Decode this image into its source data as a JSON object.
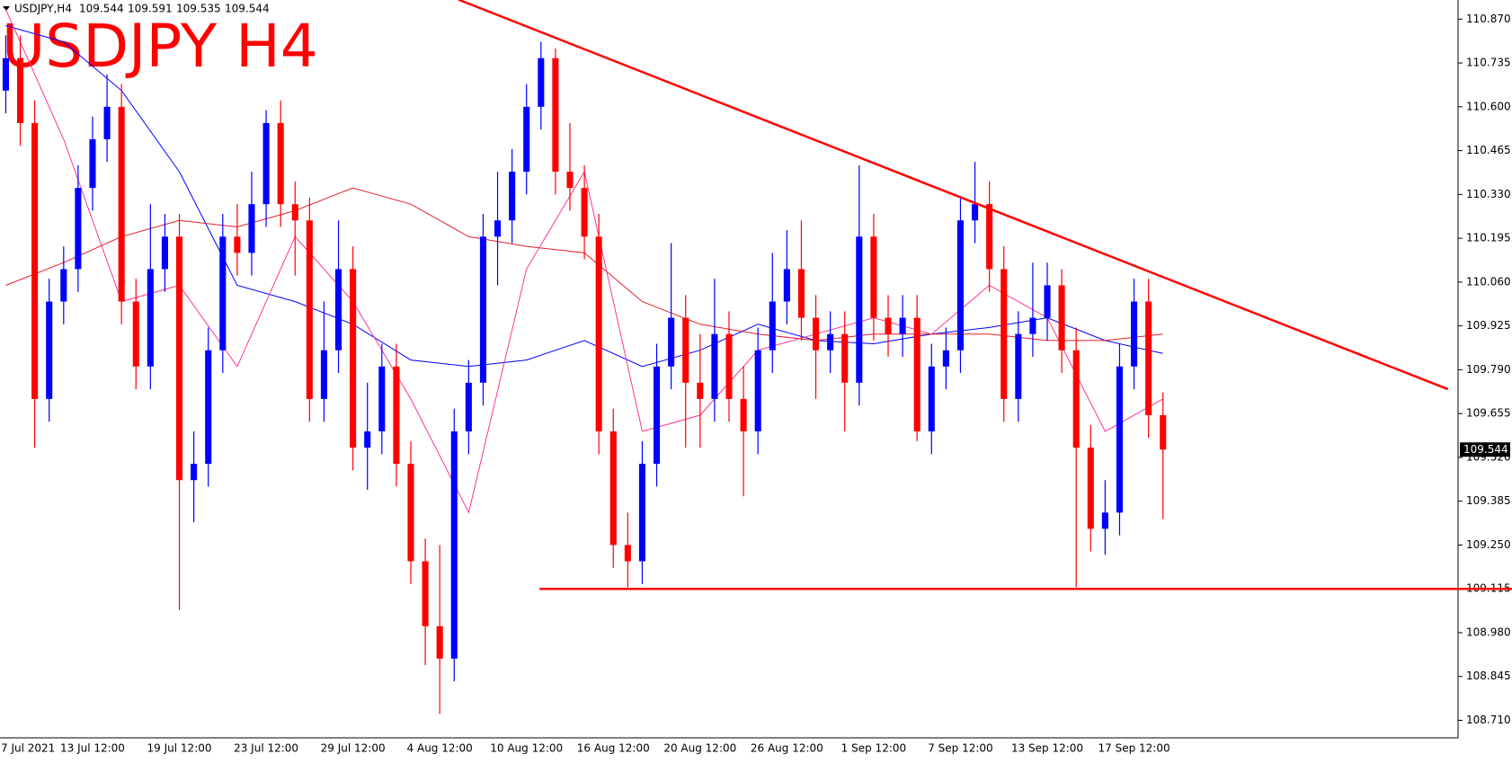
{
  "header": {
    "symbol": "USDJPY,H4",
    "ohlc": [
      109.544,
      109.591,
      109.535,
      109.544
    ]
  },
  "chart_data": {
    "type": "candlestick",
    "title": "USDJPY H4",
    "categories": [
      "7 Jul 2021",
      null,
      null,
      null,
      null,
      null,
      "13 Jul 12:00",
      null,
      null,
      null,
      null,
      null,
      "19 Jul 12:00",
      null,
      null,
      null,
      null,
      null,
      "23 Jul 12:00",
      null,
      null,
      null,
      null,
      null,
      "29 Jul 12:00",
      null,
      null,
      null,
      null,
      null,
      "4 Aug 12:00",
      null,
      null,
      null,
      null,
      null,
      "10 Aug 12:00",
      null,
      null,
      null,
      null,
      null,
      "16 Aug 12:00",
      null,
      null,
      null,
      null,
      null,
      "20 Aug 12:00",
      null,
      null,
      null,
      null,
      null,
      "26 Aug 12:00",
      null,
      null,
      null,
      null,
      null,
      "1 Sep 12:00",
      null,
      null,
      null,
      null,
      null,
      "7 Sep 12:00",
      null,
      null,
      null,
      null,
      null,
      "13 Sep 12:00",
      null,
      null,
      null,
      null,
      null,
      "17 Sep 12:00",
      null,
      null
    ],
    "open": [
      110.65,
      110.75,
      110.55,
      109.7,
      110.0,
      110.1,
      110.35,
      110.5,
      110.6,
      110.0,
      109.8,
      110.1,
      110.2,
      109.45,
      109.5,
      109.85,
      110.2,
      110.15,
      110.3,
      110.55,
      110.3,
      110.25,
      109.7,
      109.85,
      110.1,
      109.55,
      109.6,
      109.8,
      109.5,
      109.2,
      109.0,
      108.9,
      109.6,
      109.75,
      110.2,
      110.25,
      110.4,
      110.6,
      110.75,
      110.4,
      110.35,
      110.2,
      109.6,
      109.25,
      109.2,
      109.5,
      109.8,
      109.95,
      109.75,
      109.7,
      109.9,
      109.7,
      109.6,
      109.85,
      110.0,
      110.1,
      109.95,
      109.85,
      109.9,
      109.75,
      110.2,
      109.95,
      109.9,
      109.95,
      109.6,
      109.8,
      109.85,
      110.25,
      110.3,
      110.1,
      109.7,
      109.9,
      109.95,
      110.05,
      109.85,
      109.55,
      109.3,
      109.35,
      109.8,
      110.0,
      109.65
    ],
    "high": [
      110.82,
      110.82,
      110.62,
      110.07,
      110.17,
      110.42,
      110.57,
      110.7,
      110.67,
      110.07,
      110.3,
      110.27,
      110.27,
      109.6,
      109.92,
      110.27,
      110.3,
      110.4,
      110.59,
      110.62,
      110.37,
      110.32,
      110.0,
      110.25,
      110.17,
      109.75,
      109.87,
      109.87,
      109.57,
      109.27,
      109.25,
      109.67,
      109.82,
      110.27,
      110.4,
      110.47,
      110.67,
      110.8,
      110.78,
      110.55,
      110.42,
      110.27,
      109.67,
      109.35,
      109.57,
      109.87,
      110.18,
      110.02,
      109.9,
      110.07,
      109.97,
      109.8,
      109.92,
      110.15,
      110.22,
      110.25,
      110.02,
      109.97,
      109.97,
      110.42,
      110.27,
      110.02,
      110.02,
      110.02,
      109.87,
      109.92,
      110.32,
      110.43,
      110.37,
      110.17,
      109.97,
      110.12,
      110.12,
      110.1,
      109.92,
      109.62,
      109.45,
      109.87,
      110.07,
      110.07,
      109.72
    ],
    "low": [
      110.58,
      110.48,
      109.55,
      109.63,
      109.93,
      110.03,
      110.28,
      110.43,
      109.93,
      109.73,
      109.73,
      110.03,
      109.05,
      109.32,
      109.43,
      109.78,
      110.08,
      110.08,
      110.23,
      110.23,
      110.08,
      109.63,
      109.63,
      109.78,
      109.48,
      109.42,
      109.53,
      109.43,
      109.13,
      108.88,
      108.73,
      108.83,
      109.53,
      109.68,
      110.05,
      110.18,
      110.33,
      110.53,
      110.33,
      110.28,
      110.13,
      109.53,
      109.18,
      109.12,
      109.13,
      109.43,
      109.73,
      109.55,
      109.55,
      109.63,
      109.63,
      109.4,
      109.53,
      109.78,
      109.93,
      109.88,
      109.7,
      109.78,
      109.6,
      109.68,
      109.88,
      109.83,
      109.83,
      109.57,
      109.53,
      109.73,
      109.78,
      110.18,
      110.03,
      109.63,
      109.63,
      109.83,
      109.88,
      109.78,
      109.12,
      109.23,
      109.22,
      109.28,
      109.73,
      109.58,
      109.33
    ],
    "close": [
      110.75,
      110.55,
      109.7,
      110.0,
      110.1,
      110.35,
      110.5,
      110.6,
      110.0,
      109.8,
      110.1,
      110.2,
      109.45,
      109.5,
      109.85,
      110.2,
      110.15,
      110.3,
      110.55,
      110.3,
      110.25,
      109.7,
      109.85,
      110.1,
      109.55,
      109.6,
      109.8,
      109.5,
      109.2,
      109.0,
      108.9,
      109.6,
      109.75,
      110.2,
      110.25,
      110.4,
      110.6,
      110.75,
      110.4,
      110.35,
      110.2,
      109.6,
      109.25,
      109.2,
      109.5,
      109.8,
      109.95,
      109.75,
      109.7,
      109.9,
      109.7,
      109.6,
      109.85,
      110.0,
      110.1,
      109.95,
      109.85,
      109.9,
      109.75,
      110.2,
      109.95,
      109.9,
      109.95,
      109.6,
      109.8,
      109.85,
      110.25,
      110.3,
      110.1,
      109.7,
      109.9,
      109.95,
      110.05,
      109.85,
      109.55,
      109.3,
      109.35,
      109.8,
      110.0,
      109.65,
      109.544
    ],
    "up_color": "#0000ff",
    "down_color": "#ff0000",
    "lines": [
      {
        "color": "#0000ff",
        "x": [
          0,
          4,
          8,
          12,
          16,
          20,
          24,
          28,
          32,
          36,
          40,
          44,
          48,
          52,
          56,
          60,
          64,
          68,
          72,
          76,
          80
        ],
        "values": [
          110.85,
          110.8,
          110.65,
          110.4,
          110.05,
          110.0,
          109.93,
          109.82,
          109.8,
          109.82,
          109.88,
          109.8,
          109.85,
          109.93,
          109.88,
          109.87,
          109.9,
          109.92,
          109.95,
          109.88,
          109.84
        ]
      },
      {
        "color": "#e0202a",
        "x": [
          0,
          4,
          8,
          12,
          16,
          20,
          24,
          28,
          32,
          36,
          40,
          44,
          48,
          52,
          56,
          60,
          64,
          68,
          72,
          76,
          80
        ],
        "values": [
          110.05,
          110.12,
          110.2,
          110.25,
          110.23,
          110.28,
          110.35,
          110.3,
          110.2,
          110.17,
          110.15,
          110.0,
          109.93,
          109.9,
          109.88,
          109.9,
          109.9,
          109.9,
          109.88,
          109.88,
          109.9
        ]
      },
      {
        "color": "#ff3399",
        "x": [
          0,
          4,
          8,
          12,
          16,
          20,
          24,
          28,
          32,
          36,
          40,
          44,
          48,
          52,
          56,
          60,
          64,
          68,
          72,
          76,
          80
        ],
        "values": [
          110.9,
          110.5,
          110.0,
          110.05,
          109.8,
          110.2,
          110.0,
          109.7,
          109.35,
          110.1,
          110.4,
          109.6,
          109.65,
          109.85,
          109.9,
          109.95,
          109.9,
          110.05,
          109.95,
          109.6,
          109.7
        ]
      }
    ],
    "trendlines": [
      {
        "color": "#ff0000",
        "x": [
          31.3,
          99.7
        ],
        "values": [
          110.93,
          109.73
        ]
      },
      {
        "color": "#ff0000",
        "x": [
          36.9,
          104.5
        ],
        "values": [
          109.115,
          109.115
        ]
      }
    ],
    "xlim": [
      -0.4,
      100.4
    ],
    "ylim": [
      108.656,
      110.929
    ],
    "yticks": [
      {
        "value": 110.87,
        "label": "110.870"
      },
      110.735,
      {
        "value": 110.6,
        "label": "110.600"
      },
      110.465,
      {
        "value": 110.33,
        "label": "110.330"
      },
      110.195,
      {
        "value": 110.06,
        "label": "110.060"
      },
      109.925,
      {
        "value": 109.79,
        "label": "109.790"
      },
      109.655,
      {
        "value": 109.52,
        "label": "109.520"
      },
      109.385,
      {
        "value": 109.25,
        "label": "109.250"
      },
      109.115,
      {
        "value": 108.98,
        "label": "108.980"
      },
      108.845,
      {
        "value": 108.71,
        "label": "108.710"
      }
    ],
    "last_price": 109.544
  }
}
